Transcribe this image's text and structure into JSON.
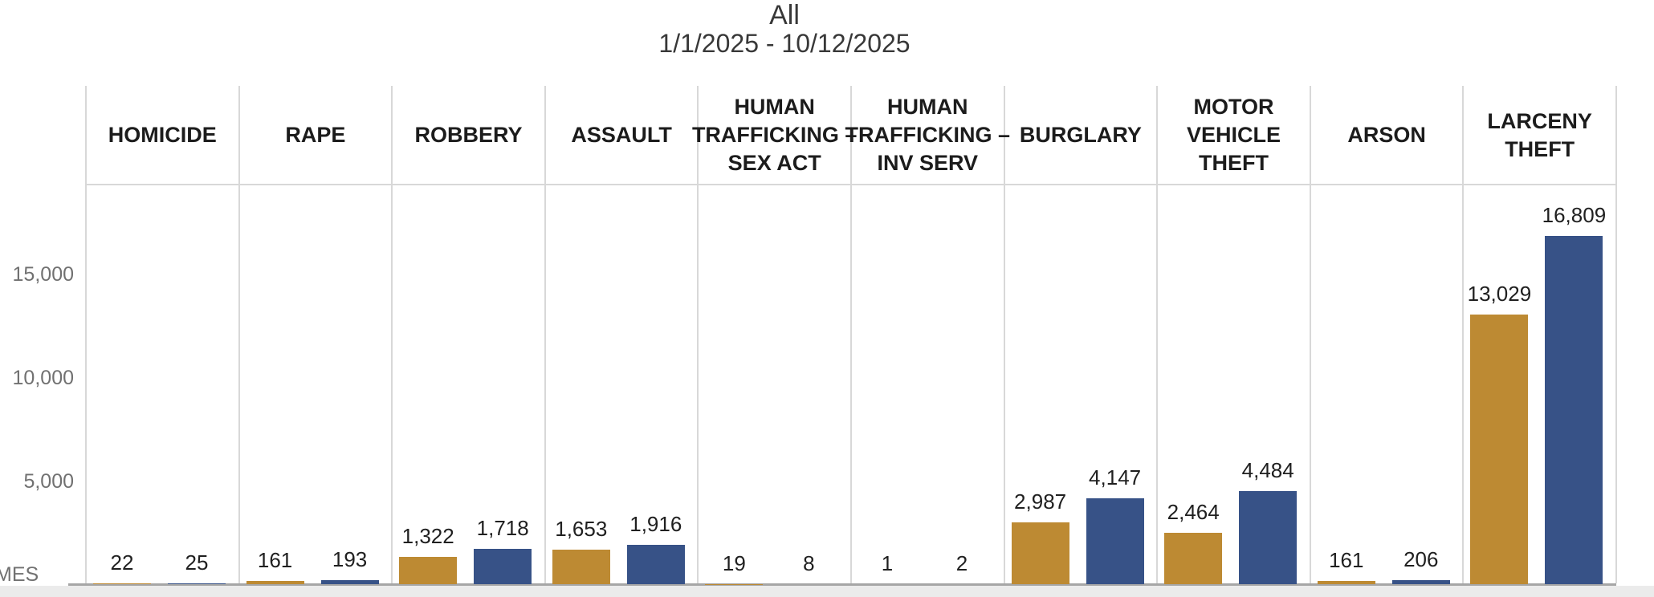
{
  "header": {
    "title": "All",
    "subtitle": "1/1/2025 - 10/12/2025"
  },
  "y_axis": {
    "ticks": [
      {
        "label": "15,000",
        "value": 15000
      },
      {
        "label": "10,000",
        "value": 10000
      },
      {
        "label": "5,000",
        "value": 5000
      }
    ],
    "clipped_axis_title_fragment": "MES"
  },
  "chart_data": {
    "type": "bar",
    "title": "All",
    "subtitle": "1/1/2025 - 10/12/2025",
    "categories": [
      "HOMICIDE",
      "RAPE",
      "ROBBERY",
      "ASSAULT",
      "HUMAN TRAFFICKING – SEX ACT",
      "HUMAN TRAFFICKING – INV SERV",
      "BURGLARY",
      "MOTOR VEHICLE THEFT",
      "ARSON",
      "LARCENY THEFT"
    ],
    "category_header_lines": [
      [
        "HOMICIDE"
      ],
      [
        "RAPE"
      ],
      [
        "ROBBERY"
      ],
      [
        "ASSAULT"
      ],
      [
        "HUMAN",
        "TRAFFICKING –",
        "SEX ACT"
      ],
      [
        "HUMAN",
        "TRAFFICKING –",
        "INV SERV"
      ],
      [
        "BURGLARY"
      ],
      [
        "MOTOR",
        "VEHICLE",
        "THEFT"
      ],
      [
        "ARSON"
      ],
      [
        "LARCENY",
        "THEFT"
      ]
    ],
    "series": [
      {
        "name": "gold",
        "color": "#BD8A33",
        "values": [
          22,
          161,
          1322,
          1653,
          19,
          1,
          2987,
          2464,
          161,
          13029
        ],
        "labels": [
          "22",
          "161",
          "1,322",
          "1,653",
          "19",
          "1",
          "2,987",
          "2,464",
          "161",
          "13,029"
        ]
      },
      {
        "name": "blue",
        "color": "#375287",
        "values": [
          25,
          193,
          1718,
          1916,
          8,
          2,
          4147,
          4484,
          206,
          16809
        ],
        "labels": [
          "25",
          "193",
          "1,718",
          "1,916",
          "8",
          "2",
          "4,147",
          "4,484",
          "206",
          "16,809"
        ]
      }
    ],
    "xlabel": "",
    "ylabel": "",
    "ylim": [
      0,
      19300
    ],
    "grid": "vertical column dividers only, no horizontal gridlines",
    "legend": "none visible"
  },
  "colors": {
    "gold_bar": "#BD8A33",
    "blue_bar": "#375287",
    "divider": "#d8d8d8",
    "baseline": "#a6a6a6",
    "bottom_strip": "#ebebeb",
    "tick_text": "#717171",
    "header_text": "#1c1c1c",
    "value_text": "#202020",
    "title_text": "#383838"
  }
}
